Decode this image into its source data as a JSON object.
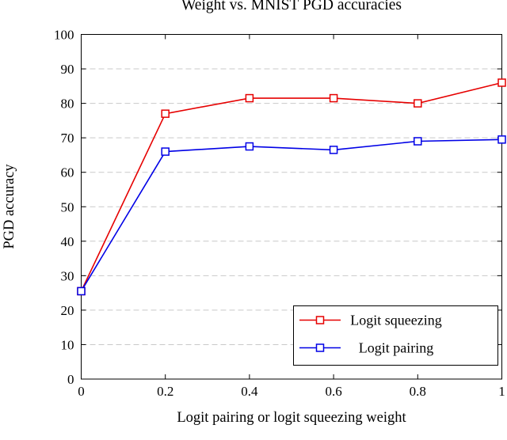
{
  "chart_data": {
    "type": "line",
    "title": "Weight vs. MNIST PGD accuracies",
    "xlabel": "Logit pairing or logit squeezing weight",
    "ylabel": "PGD accuracy",
    "xlim": [
      0,
      1
    ],
    "ylim": [
      0,
      100
    ],
    "xticks": [
      0,
      0.2,
      0.4,
      0.6,
      0.8,
      1
    ],
    "xtick_labels": [
      "0",
      "0.2",
      "0.4",
      "0.6",
      "0.8",
      "1"
    ],
    "yticks": [
      0,
      10,
      20,
      30,
      40,
      50,
      60,
      70,
      80,
      90,
      100
    ],
    "ytick_labels": [
      "0",
      "10",
      "20",
      "30",
      "40",
      "50",
      "60",
      "70",
      "80",
      "90",
      "100"
    ],
    "grid": "horizontal-dashed",
    "legend_position": "bottom-right",
    "x": [
      0,
      0.2,
      0.4,
      0.6,
      0.8,
      1
    ],
    "series": [
      {
        "name": "Logit squeezing",
        "color": "#e60000",
        "marker": "open-square",
        "values": [
          25.5,
          77,
          81.5,
          81.5,
          80,
          86
        ]
      },
      {
        "name": "Logit pairing",
        "color": "#0000e6",
        "marker": "open-square",
        "values": [
          25.5,
          66,
          67.5,
          66.5,
          69,
          69.5
        ]
      }
    ],
    "colors": {
      "grid": "#c9c9c9",
      "axis": "#000000",
      "background": "#ffffff"
    }
  }
}
